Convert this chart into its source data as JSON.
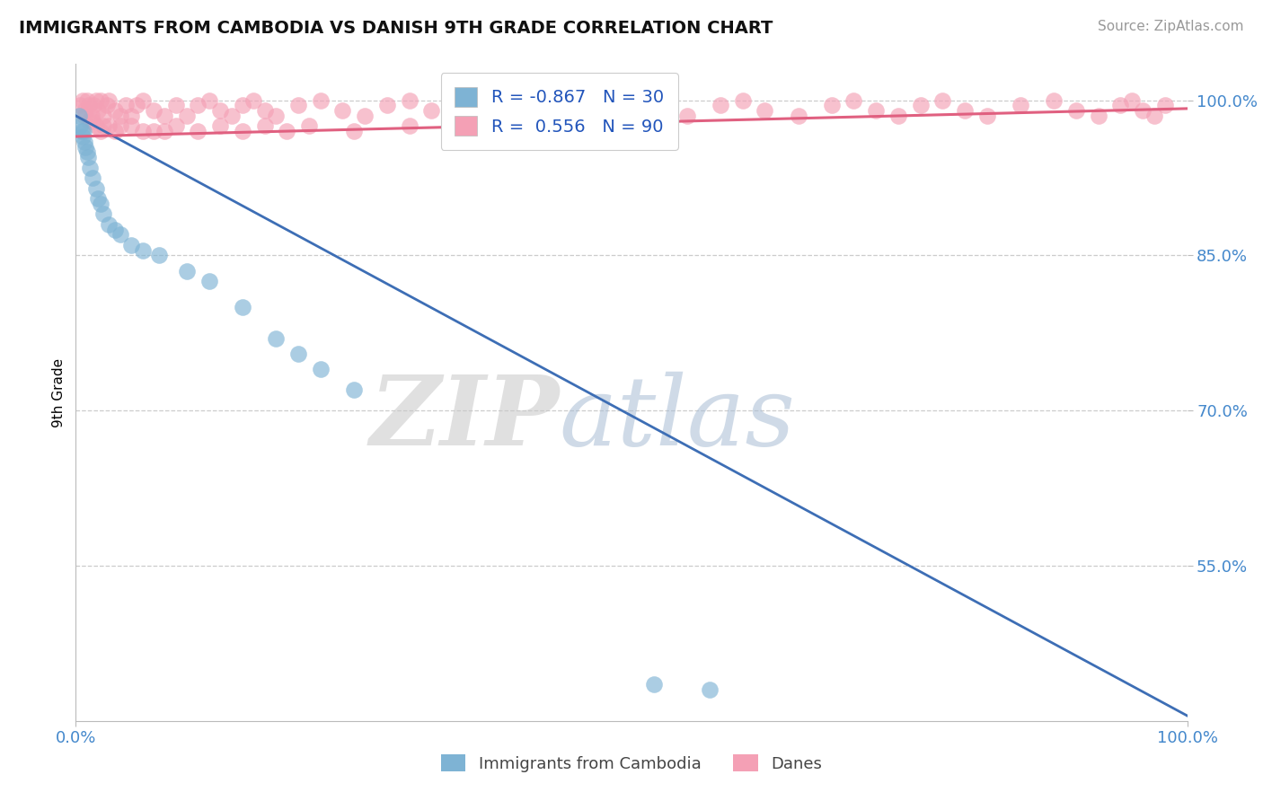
{
  "title": "IMMIGRANTS FROM CAMBODIA VS DANISH 9TH GRADE CORRELATION CHART",
  "source_text": "Source: ZipAtlas.com",
  "ylabel": "9th Grade",
  "xlim": [
    0.0,
    100.0
  ],
  "ylim": [
    40.0,
    103.5
  ],
  "yticks": [
    55.0,
    70.0,
    85.0,
    100.0
  ],
  "ytick_labels": [
    "55.0%",
    "70.0%",
    "85.0%",
    "100.0%"
  ],
  "xtick_labels": [
    "0.0%",
    "100.0%"
  ],
  "legend_r_blue": "-0.867",
  "legend_n_blue": "30",
  "legend_r_pink": "0.556",
  "legend_n_pink": "90",
  "blue_color": "#7EB3D4",
  "pink_color": "#F4A0B5",
  "trend_blue_color": "#3D6EB5",
  "trend_pink_color": "#E06080",
  "blue_trend_x0": 0.0,
  "blue_trend_y0": 98.5,
  "blue_trend_x1": 100.0,
  "blue_trend_y1": 40.5,
  "pink_trend_x0": 0.0,
  "pink_trend_y0": 96.5,
  "pink_trend_x1": 100.0,
  "pink_trend_y1": 99.2,
  "blue_scatter_x": [
    0.3,
    0.4,
    0.5,
    0.6,
    0.7,
    0.8,
    0.9,
    1.0,
    1.1,
    1.3,
    1.5,
    1.8,
    2.0,
    2.2,
    2.5,
    3.0,
    3.5,
    4.0,
    5.0,
    6.0,
    7.5,
    10.0,
    12.0,
    15.0,
    18.0,
    20.0,
    22.0,
    25.0,
    52.0,
    57.0
  ],
  "blue_scatter_y": [
    98.5,
    97.5,
    97.0,
    96.5,
    97.0,
    96.0,
    95.5,
    95.0,
    94.5,
    93.5,
    92.5,
    91.5,
    90.5,
    90.0,
    89.0,
    88.0,
    87.5,
    87.0,
    86.0,
    85.5,
    85.0,
    83.5,
    82.5,
    80.0,
    77.0,
    75.5,
    74.0,
    72.0,
    43.5,
    43.0
  ],
  "pink_scatter_x": [
    0.4,
    0.6,
    0.8,
    1.0,
    1.2,
    1.4,
    1.6,
    1.8,
    2.0,
    2.2,
    2.5,
    2.8,
    3.0,
    3.5,
    4.0,
    4.5,
    5.0,
    5.5,
    6.0,
    7.0,
    8.0,
    9.0,
    10.0,
    11.0,
    12.0,
    13.0,
    14.0,
    15.0,
    16.0,
    17.0,
    18.0,
    20.0,
    22.0,
    24.0,
    26.0,
    28.0,
    30.0,
    32.0,
    35.0,
    38.0,
    40.0,
    42.0,
    45.0,
    48.0,
    50.0,
    52.0,
    55.0,
    58.0,
    60.0,
    62.0,
    65.0,
    68.0,
    70.0,
    72.0,
    74.0,
    76.0,
    78.0,
    80.0,
    82.0,
    85.0,
    88.0,
    90.0,
    92.0,
    94.0,
    95.0,
    96.0,
    97.0,
    98.0,
    1.5,
    2.5,
    3.5,
    5.0,
    7.0,
    0.8,
    1.2,
    1.8,
    2.2,
    3.0,
    8.0,
    4.0,
    6.0,
    9.0,
    11.0,
    13.0,
    15.0,
    17.0,
    19.0,
    21.0,
    25.0,
    30.0
  ],
  "pink_scatter_y": [
    99.5,
    100.0,
    99.0,
    100.0,
    99.5,
    98.5,
    99.5,
    100.0,
    99.0,
    100.0,
    98.5,
    99.5,
    100.0,
    99.0,
    98.5,
    99.5,
    98.5,
    99.5,
    100.0,
    99.0,
    98.5,
    99.5,
    98.5,
    99.5,
    100.0,
    99.0,
    98.5,
    99.5,
    100.0,
    99.0,
    98.5,
    99.5,
    100.0,
    99.0,
    98.5,
    99.5,
    100.0,
    99.0,
    98.5,
    99.5,
    100.0,
    99.0,
    98.5,
    99.5,
    100.0,
    99.0,
    98.5,
    99.5,
    100.0,
    99.0,
    98.5,
    99.5,
    100.0,
    99.0,
    98.5,
    99.5,
    100.0,
    99.0,
    98.5,
    99.5,
    100.0,
    99.0,
    98.5,
    99.5,
    100.0,
    99.0,
    98.5,
    99.5,
    98.0,
    97.5,
    97.0,
    97.5,
    97.0,
    98.5,
    98.0,
    97.5,
    97.0,
    97.5,
    97.0,
    97.5,
    97.0,
    97.5,
    97.0,
    97.5,
    97.0,
    97.5,
    97.0,
    97.5,
    97.0,
    97.5
  ],
  "watermark_zip_color": "#C8C8C8",
  "watermark_atlas_color": "#A8BDD4",
  "grid_color": "#CCCCCC",
  "spine_color": "#BBBBBB",
  "tick_color": "#4488CC",
  "background_color": "#FFFFFF"
}
